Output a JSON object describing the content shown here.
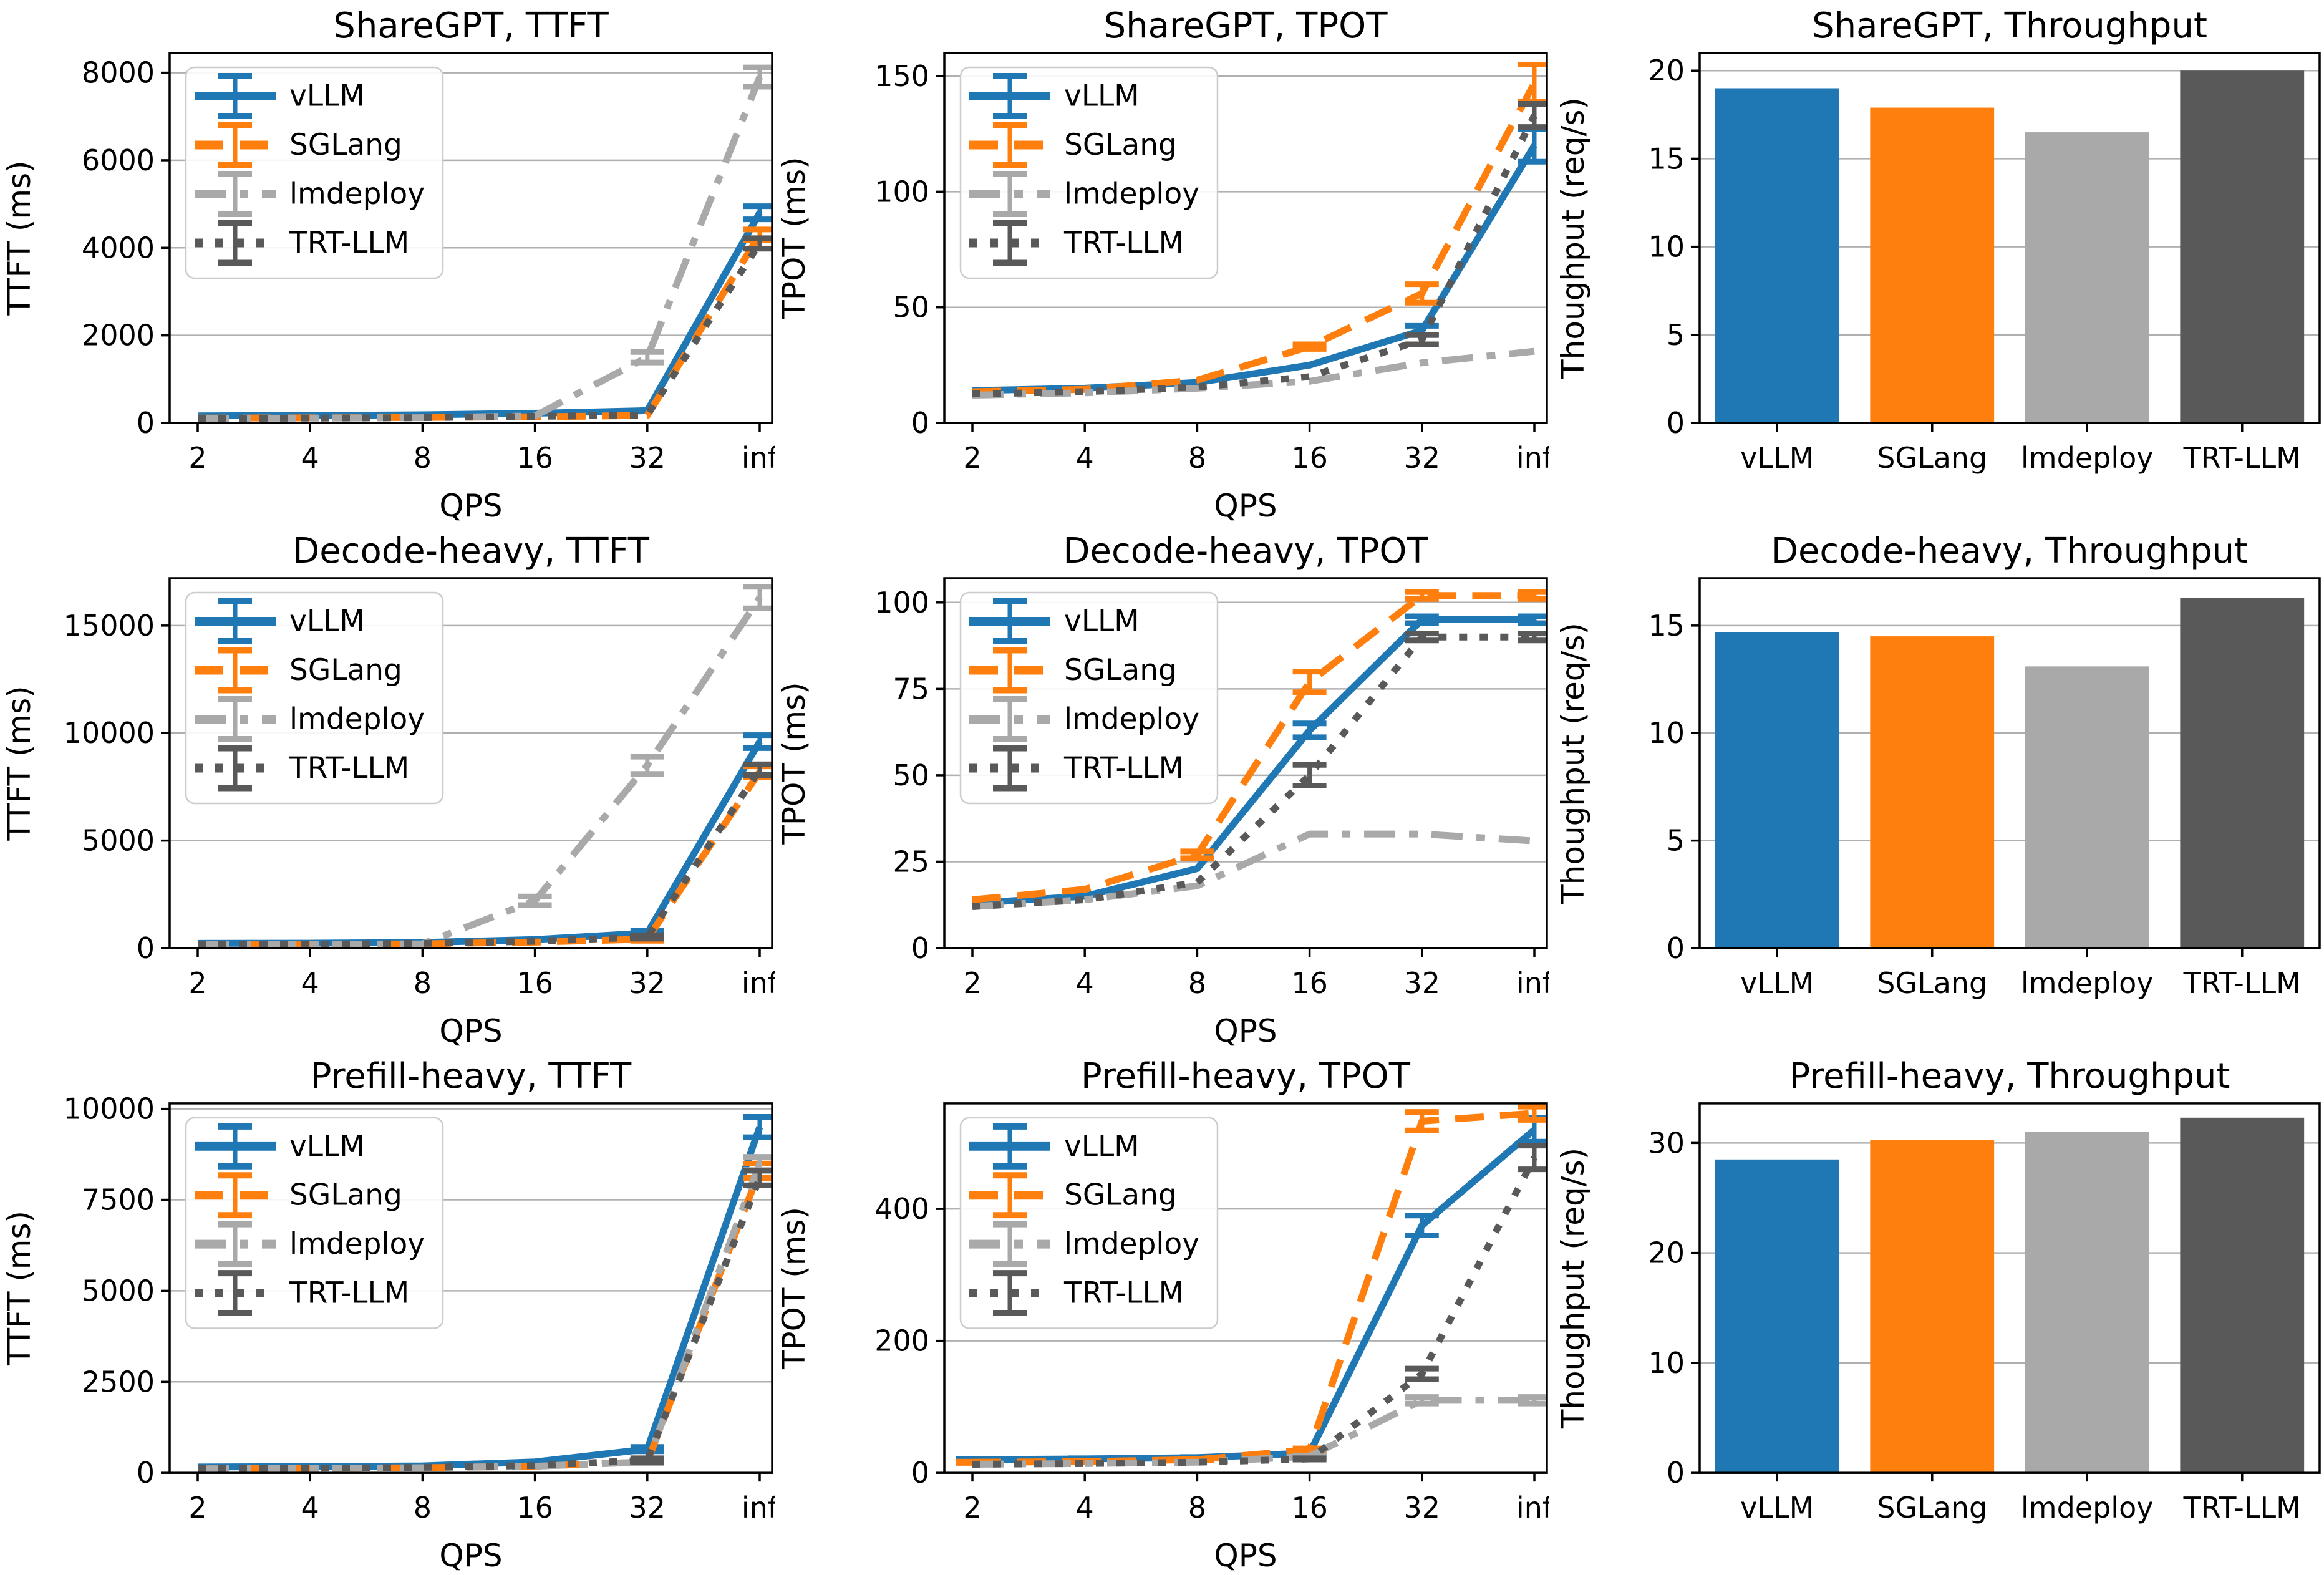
{
  "page": {
    "background": "#ffffff",
    "grid_color": "#b0b0b0",
    "spine_color": "#000000"
  },
  "engines": [
    {
      "name": "vLLM",
      "color": "#1f77b4",
      "dash": "solid"
    },
    {
      "name": "SGLang",
      "color": "#ff7f0e",
      "dash": "dashed"
    },
    {
      "name": "lmdeploy",
      "color": "#a9a9a9",
      "dash": "dashdot"
    },
    {
      "name": "TRT-LLM",
      "color": "#595959",
      "dash": "dotted"
    }
  ],
  "chart_data": [
    {
      "id": "sharegpt-ttft",
      "type": "line",
      "title": "ShareGPT, TTFT",
      "ylabel": "TTFT (ms)",
      "xlabel": "QPS",
      "x_tick_labels": [
        "2",
        "4",
        "8",
        "16",
        "32",
        "inf"
      ],
      "yticks": [
        0,
        2000,
        4000,
        6000,
        8000
      ],
      "ylim": [
        0,
        8450
      ],
      "grid": true,
      "legend": true,
      "legend_position": "upper-left",
      "series": [
        {
          "name": "vLLM",
          "values": [
            160,
            170,
            185,
            220,
            280,
            4800
          ],
          "err": [
            0,
            0,
            0,
            0,
            0,
            150
          ]
        },
        {
          "name": "SGLang",
          "values": [
            110,
            115,
            125,
            140,
            170,
            4300
          ],
          "err": [
            0,
            0,
            0,
            0,
            0,
            120
          ]
        },
        {
          "name": "lmdeploy",
          "values": [
            105,
            110,
            120,
            160,
            1500,
            7900
          ],
          "err": [
            0,
            0,
            0,
            0,
            120,
            220
          ]
        },
        {
          "name": "TRT-LLM",
          "values": [
            105,
            110,
            120,
            150,
            180,
            4100
          ],
          "err": [
            0,
            0,
            0,
            0,
            0,
            120
          ]
        }
      ]
    },
    {
      "id": "sharegpt-tpot",
      "type": "line",
      "title": "ShareGPT, TPOT",
      "ylabel": "TPOT (ms)",
      "xlabel": "QPS",
      "x_tick_labels": [
        "2",
        "4",
        "8",
        "16",
        "32",
        "inf"
      ],
      "yticks": [
        0,
        50,
        100,
        150
      ],
      "ylim": [
        0,
        160
      ],
      "grid": true,
      "legend": true,
      "legend_position": "upper-left",
      "series": [
        {
          "name": "vLLM",
          "values": [
            14,
            15,
            17.5,
            25,
            40,
            120
          ],
          "err": [
            0,
            0,
            0,
            0,
            2,
            7
          ]
        },
        {
          "name": "SGLang",
          "values": [
            13.5,
            14.5,
            18.5,
            33,
            56,
            147
          ],
          "err": [
            0,
            0,
            0,
            1,
            4,
            8
          ]
        },
        {
          "name": "lmdeploy",
          "values": [
            12,
            13,
            15,
            18,
            26,
            31
          ],
          "err": [
            0,
            0,
            0,
            0,
            0,
            0
          ]
        },
        {
          "name": "TRT-LLM",
          "values": [
            12.5,
            13.5,
            15.5,
            20,
            36,
            133
          ],
          "err": [
            0,
            0,
            0,
            0,
            2,
            5
          ]
        }
      ]
    },
    {
      "id": "sharegpt-throughput",
      "type": "bar",
      "title": "ShareGPT, Throughput",
      "ylabel": "Thoughput (req/s)",
      "categories": [
        "vLLM",
        "SGLang",
        "lmdeploy",
        "TRT-LLM"
      ],
      "yticks": [
        0,
        5,
        10,
        15,
        20
      ],
      "ylim": [
        0,
        21
      ],
      "grid": true,
      "values": [
        19.0,
        17.9,
        16.5,
        20.0
      ]
    },
    {
      "id": "decode-heavy-ttft",
      "type": "line",
      "title": "Decode-heavy, TTFT",
      "ylabel": "TTFT (ms)",
      "xlabel": "QPS",
      "x_tick_labels": [
        "2",
        "4",
        "8",
        "16",
        "32",
        "inf"
      ],
      "yticks": [
        0,
        5000,
        10000,
        15000
      ],
      "ylim": [
        0,
        17200
      ],
      "grid": true,
      "legend": true,
      "legend_position": "upper-left",
      "series": [
        {
          "name": "vLLM",
          "values": [
            220,
            230,
            260,
            400,
            700,
            9600
          ],
          "err": [
            0,
            0,
            0,
            0,
            100,
            300
          ]
        },
        {
          "name": "SGLang",
          "values": [
            160,
            170,
            200,
            280,
            420,
            8200
          ],
          "err": [
            0,
            0,
            0,
            0,
            80,
            250
          ]
        },
        {
          "name": "lmdeploy",
          "values": [
            160,
            170,
            200,
            2200,
            8500,
            16300
          ],
          "err": [
            0,
            0,
            0,
            200,
            400,
            500
          ]
        },
        {
          "name": "TRT-LLM",
          "values": [
            170,
            180,
            220,
            320,
            520,
            8300
          ],
          "err": [
            0,
            0,
            0,
            0,
            80,
            250
          ]
        }
      ]
    },
    {
      "id": "decode-heavy-tpot",
      "type": "line",
      "title": "Decode-heavy, TPOT",
      "ylabel": "TPOT (ms)",
      "xlabel": "QPS",
      "x_tick_labels": [
        "2",
        "4",
        "8",
        "16",
        "32",
        "inf"
      ],
      "yticks": [
        0,
        25,
        50,
        75,
        100
      ],
      "ylim": [
        0,
        107
      ],
      "grid": true,
      "legend": true,
      "legend_position": "upper-left",
      "series": [
        {
          "name": "vLLM",
          "values": [
            13,
            15,
            23,
            63,
            95,
            95
          ],
          "err": [
            0,
            0,
            0,
            2,
            1,
            1
          ]
        },
        {
          "name": "SGLang",
          "values": [
            14,
            17,
            27,
            77,
            102,
            102
          ],
          "err": [
            0,
            0,
            1,
            3,
            1,
            1
          ]
        },
        {
          "name": "lmdeploy",
          "values": [
            12,
            14,
            18,
            33,
            33,
            31
          ],
          "err": [
            0,
            0,
            0,
            0,
            0,
            0
          ]
        },
        {
          "name": "TRT-LLM",
          "values": [
            12,
            14,
            19,
            50,
            90,
            90
          ],
          "err": [
            0,
            0,
            0,
            3,
            1,
            1
          ]
        }
      ]
    },
    {
      "id": "decode-heavy-throughput",
      "type": "bar",
      "title": "Decode-heavy, Throughput",
      "ylabel": "Thoughput (req/s)",
      "categories": [
        "vLLM",
        "SGLang",
        "lmdeploy",
        "TRT-LLM"
      ],
      "yticks": [
        0,
        5,
        10,
        15
      ],
      "ylim": [
        0,
        17.2
      ],
      "grid": true,
      "values": [
        14.7,
        14.5,
        13.1,
        16.3
      ]
    },
    {
      "id": "prefill-heavy-ttft",
      "type": "line",
      "title": "Prefill-heavy, TTFT",
      "ylabel": "TTFT (ms)",
      "xlabel": "QPS",
      "x_tick_labels": [
        "2",
        "4",
        "8",
        "16",
        "32",
        "inf"
      ],
      "yticks": [
        0,
        2500,
        5000,
        7500,
        10000
      ],
      "ylim": [
        0,
        10150
      ],
      "grid": true,
      "legend": true,
      "legend_position": "upper-left",
      "series": [
        {
          "name": "vLLM",
          "values": [
            160,
            170,
            190,
            300,
            650,
            9500
          ],
          "err": [
            0,
            0,
            0,
            0,
            60,
            280
          ]
        },
        {
          "name": "SGLang",
          "values": [
            110,
            120,
            140,
            180,
            300,
            8300
          ],
          "err": [
            0,
            0,
            0,
            0,
            40,
            200
          ]
        },
        {
          "name": "lmdeploy",
          "values": [
            110,
            120,
            140,
            180,
            300,
            8500
          ],
          "err": [
            0,
            0,
            0,
            0,
            40,
            180
          ]
        },
        {
          "name": "TRT-LLM",
          "values": [
            115,
            125,
            150,
            200,
            350,
            8100
          ],
          "err": [
            0,
            0,
            0,
            0,
            50,
            200
          ]
        }
      ]
    },
    {
      "id": "prefill-heavy-tpot",
      "type": "line",
      "title": "Prefill-heavy, TPOT",
      "ylabel": "TPOT (ms)",
      "xlabel": "QPS",
      "x_tick_labels": [
        "2",
        "4",
        "8",
        "16",
        "32",
        "inf"
      ],
      "yticks": [
        0,
        200,
        400
      ],
      "ylim": [
        0,
        560
      ],
      "grid": true,
      "legend": true,
      "legend_position": "upper-left",
      "series": [
        {
          "name": "vLLM",
          "values": [
            20,
            21,
            23,
            30,
            375,
            520
          ],
          "err": [
            1,
            1,
            1,
            2,
            15,
            18
          ]
        },
        {
          "name": "SGLang",
          "values": [
            16,
            17,
            20,
            35,
            533,
            545
          ],
          "err": [
            1,
            1,
            1,
            2,
            14,
            10
          ]
        },
        {
          "name": "lmdeploy",
          "values": [
            13,
            14,
            16,
            25,
            110,
            110
          ],
          "err": [
            0,
            0,
            0,
            1,
            5,
            5
          ]
        },
        {
          "name": "TRT-LLM",
          "values": [
            13,
            14,
            16,
            21,
            150,
            478
          ],
          "err": [
            0,
            0,
            0,
            1,
            8,
            18
          ]
        }
      ]
    },
    {
      "id": "prefill-heavy-throughput",
      "type": "bar",
      "title": "Prefill-heavy, Throughput",
      "ylabel": "Thoughput (req/s)",
      "categories": [
        "vLLM",
        "SGLang",
        "lmdeploy",
        "TRT-LLM"
      ],
      "yticks": [
        0,
        10,
        20,
        30
      ],
      "ylim": [
        0,
        33.6
      ],
      "grid": true,
      "values": [
        28.5,
        30.3,
        31.0,
        32.3
      ]
    }
  ]
}
